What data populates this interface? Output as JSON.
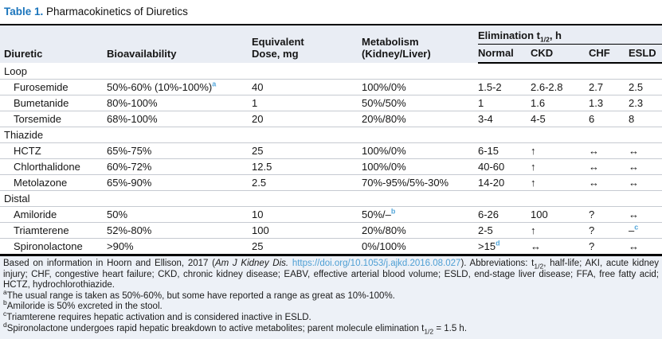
{
  "title": {
    "label": "Table 1.",
    "text": " Pharmacokinetics of Diuretics"
  },
  "header": {
    "diuretic": "Diuretic",
    "bioavailability": "Bioavailability",
    "dose_line1": "Equivalent",
    "dose_line2": "Dose, mg",
    "metabolism_line1": "Metabolism",
    "metabolism_line2": "(Kidney/Liver)",
    "elimination_prefix": "Elimination t",
    "elimination_sub": "1/2",
    "elimination_suffix": ", h",
    "subcolumns": [
      "Normal",
      "CKD",
      "CHF",
      "ESLD"
    ]
  },
  "sections": [
    {
      "name": "Loop",
      "rows": [
        {
          "diuretic": "Furosemide",
          "bioavailability": "50%-60% (10%-100%)",
          "bioavailability_sup": "a",
          "dose": "40",
          "metabolism": "100%/0%",
          "normal": "1.5-2",
          "ckd": "2.6-2.8",
          "chf": "2.7",
          "esld": "2.5"
        },
        {
          "diuretic": "Bumetanide",
          "bioavailability": "80%-100%",
          "dose": "1",
          "metabolism": "50%/50%",
          "normal": "1",
          "ckd": "1.6",
          "chf": "1.3",
          "esld": "2.3"
        },
        {
          "diuretic": "Torsemide",
          "bioavailability": "68%-100%",
          "dose": "20",
          "metabolism": "20%/80%",
          "normal": "3-4",
          "ckd": "4-5",
          "chf": "6",
          "esld": "8"
        }
      ]
    },
    {
      "name": "Thiazide",
      "rows": [
        {
          "diuretic": "HCTZ",
          "bioavailability": "65%-75%",
          "dose": "25",
          "metabolism": "100%/0%",
          "normal": "6-15",
          "ckd": "↑",
          "chf": "↔",
          "esld": "↔"
        },
        {
          "diuretic": "Chlorthalidone",
          "bioavailability": "60%-72%",
          "dose": "12.5",
          "metabolism": "100%/0%",
          "normal": "40-60",
          "ckd": "↑",
          "chf": "↔",
          "esld": "↔"
        },
        {
          "diuretic": "Metolazone",
          "bioavailability": "65%-90%",
          "dose": "2.5",
          "metabolism": "70%-95%/5%-30%",
          "normal": "14-20",
          "ckd": "↑",
          "chf": "↔",
          "esld": "↔"
        }
      ]
    },
    {
      "name": "Distal",
      "rows": [
        {
          "diuretic": "Amiloride",
          "bioavailability": "50%",
          "dose": "10",
          "metabolism": "50%/–",
          "metabolism_sup": "b",
          "normal": "6-26",
          "ckd": "100",
          "chf": "?",
          "esld": "↔"
        },
        {
          "diuretic": "Triamterene",
          "bioavailability": "52%-80%",
          "dose": "100",
          "metabolism": "20%/80%",
          "normal": "2-5",
          "ckd": "↑",
          "chf": "?",
          "esld": "–",
          "esld_sup": "c"
        },
        {
          "diuretic": "Spironolactone",
          "bioavailability": ">90%",
          "dose": "25",
          "metabolism": "0%/100%",
          "normal": ">15",
          "normal_sup": "d",
          "ckd": "↔",
          "chf": "?",
          "esld": "↔"
        }
      ]
    }
  ],
  "footnote": {
    "base_parts": [
      {
        "text": "Based on information in Hoorn and Ellison, 2017 ("
      },
      {
        "italic": "Am J Kidney Dis."
      },
      {
        "text": " "
      },
      {
        "link": "https://doi.org/10.1053/j.ajkd.2016.08.027"
      },
      {
        "text": "). Abbreviations: t"
      },
      {
        "sub": "1/2"
      },
      {
        "text": ", half-life; AKI, acute kidney injury; CHF, congestive heart failure; CKD, chronic kidney disease; EABV, effective arterial blood volume; ESLD, end-stage liver disease; FFA, free fatty acid; HCTZ, hydrochlorothiazide."
      }
    ],
    "items": [
      {
        "marker": "a",
        "parts": [
          {
            "text": "The usual range is taken as 50%-60%, but some have reported a range as great as 10%-100%."
          }
        ]
      },
      {
        "marker": "b",
        "parts": [
          {
            "text": "Amiloride is 50% excreted in the stool."
          }
        ]
      },
      {
        "marker": "c",
        "parts": [
          {
            "text": "Triamterene requires hepatic activation and is considered inactive in ESLD."
          }
        ]
      },
      {
        "marker": "d",
        "parts": [
          {
            "text": "Spironolactone undergoes rapid hepatic breakdown to active metabolites; parent molecule elimination t"
          },
          {
            "sub": "1/2"
          },
          {
            "text": " = 1.5 h."
          }
        ]
      }
    ]
  },
  "colors": {
    "title_blue": "#1b75bc",
    "superscript_blue": "#54a7db",
    "link_blue": "#4e9fd4",
    "header_background": "#e9edf4",
    "footnote_background": "#edf1f7",
    "rule_light": "#c6cad1",
    "rule_dark": "#000000"
  }
}
